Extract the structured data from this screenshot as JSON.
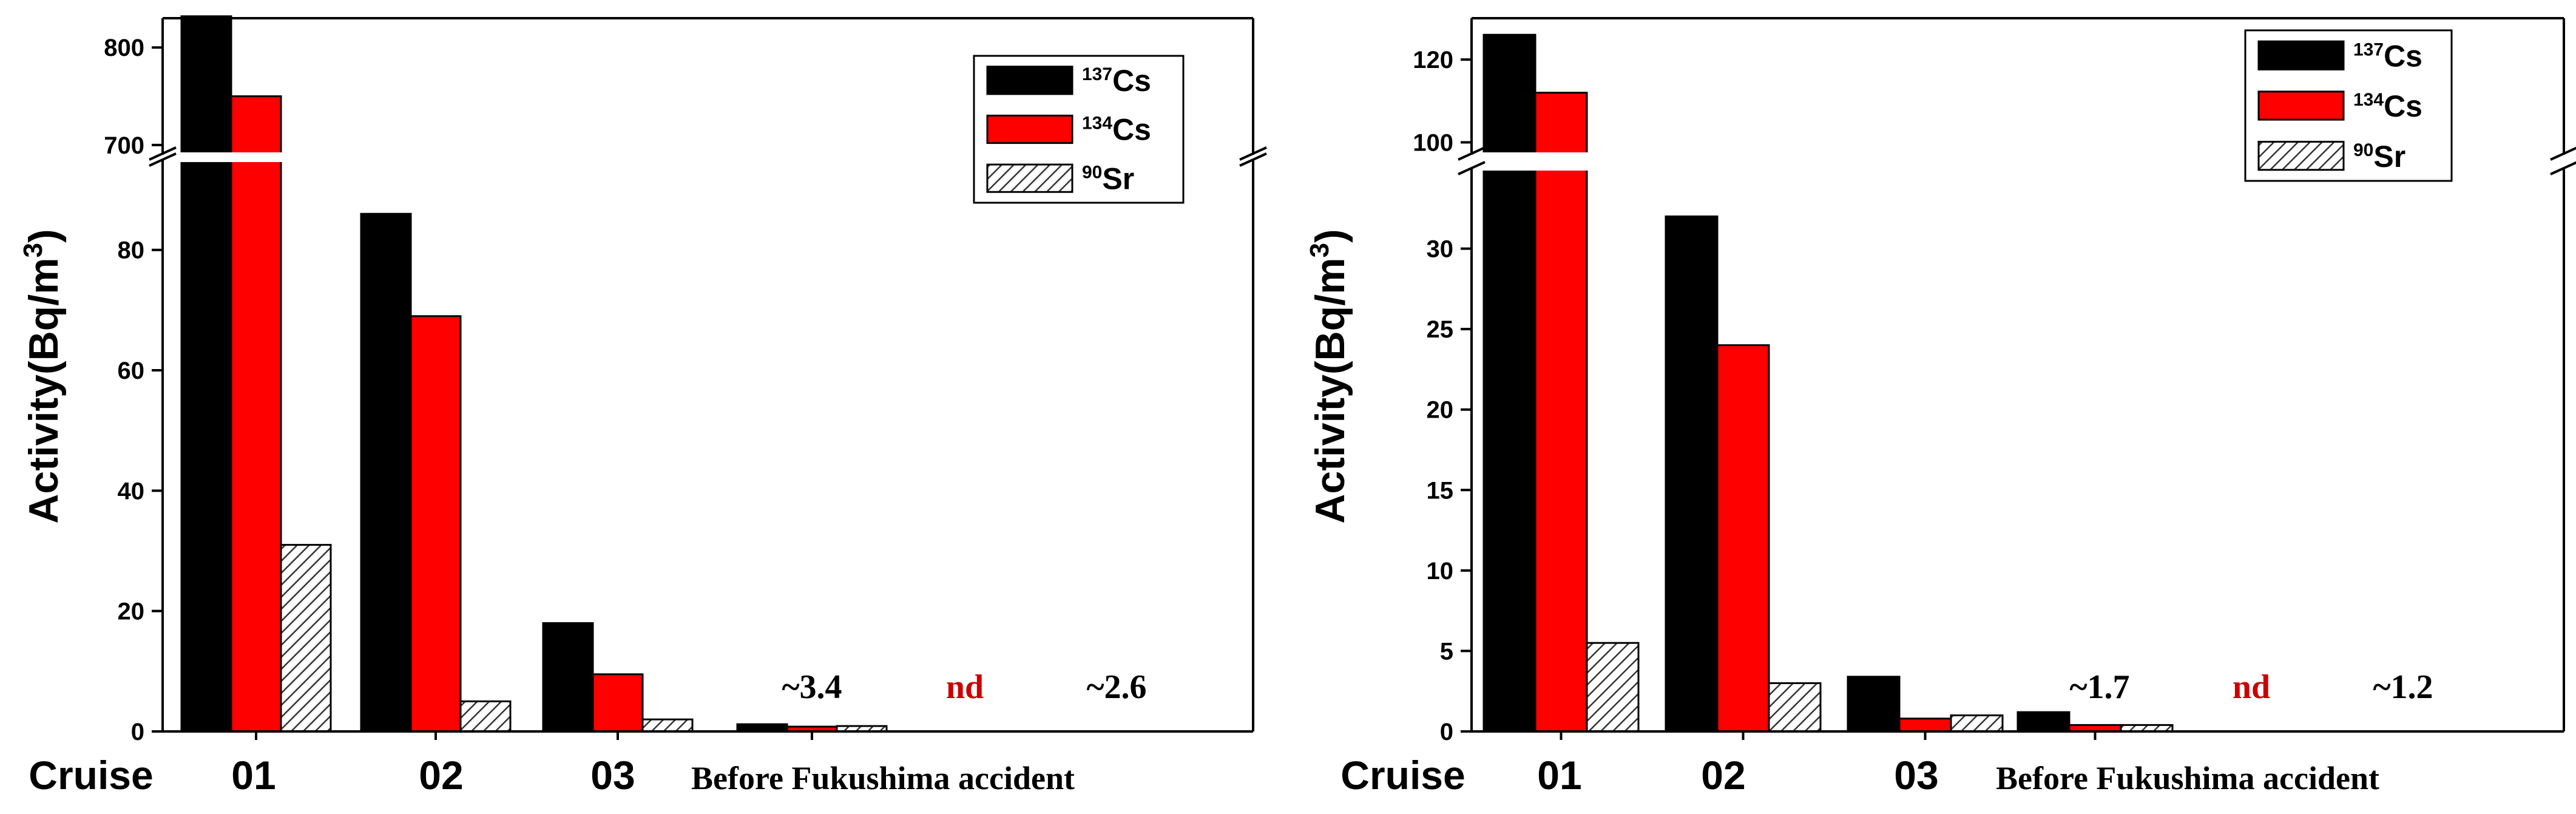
{
  "colors": {
    "cs137": "#000000",
    "cs134": "#ff0000",
    "sr90_hatch": "#333333",
    "nd_label": "#cc0000"
  },
  "chart_data": [
    {
      "type": "bar",
      "ylabel": "Activity(Bq/m³)",
      "xlabel": "Cruise",
      "categories": [
        "01",
        "02",
        "03",
        "Before Fukushima accident"
      ],
      "axis_break": true,
      "ylim_lower": [
        0,
        95
      ],
      "ylim_upper": [
        690,
        830
      ],
      "yticks_lower": [
        0,
        20,
        40,
        60,
        80
      ],
      "yticks_upper": [
        700,
        800
      ],
      "grid": false,
      "legend_position": "top-right",
      "legend": [
        {
          "sup": "137",
          "name": "Cs"
        },
        {
          "sup": "134",
          "name": "Cs"
        },
        {
          "sup": "90",
          "name": "Sr"
        }
      ],
      "series": [
        {
          "name": "137Cs",
          "values": [
            832,
            86,
            18,
            1.2
          ]
        },
        {
          "name": "134Cs",
          "values": [
            750,
            69,
            9.5,
            0.8
          ]
        },
        {
          "name": "90Sr",
          "values": [
            31,
            5,
            2,
            0.9
          ]
        }
      ],
      "annotations": [
        "~3.4",
        "nd",
        "~2.6"
      ]
    },
    {
      "type": "bar",
      "ylabel": "Activity(Bq/m³)",
      "xlabel": "Cruise",
      "categories": [
        "01",
        "02",
        "03",
        "Before Fukushima accident"
      ],
      "axis_break": true,
      "ylim_lower": [
        0,
        35
      ],
      "ylim_upper": [
        97,
        130
      ],
      "yticks_lower": [
        0,
        5,
        10,
        15,
        20,
        25,
        30
      ],
      "yticks_upper": [
        100,
        120
      ],
      "grid": false,
      "legend_position": "top-right",
      "legend": [
        {
          "sup": "137",
          "name": "Cs"
        },
        {
          "sup": "134",
          "name": "Cs"
        },
        {
          "sup": "90",
          "name": "Sr"
        }
      ],
      "series": [
        {
          "name": "137Cs",
          "values": [
            126,
            32,
            3.4,
            1.2
          ]
        },
        {
          "name": "134Cs",
          "values": [
            112,
            24,
            0.8,
            0.4
          ]
        },
        {
          "name": "90Sr",
          "values": [
            5.5,
            3,
            1,
            0.4
          ]
        }
      ],
      "annotations": [
        "~1.7",
        "nd",
        "~1.2"
      ]
    }
  ]
}
